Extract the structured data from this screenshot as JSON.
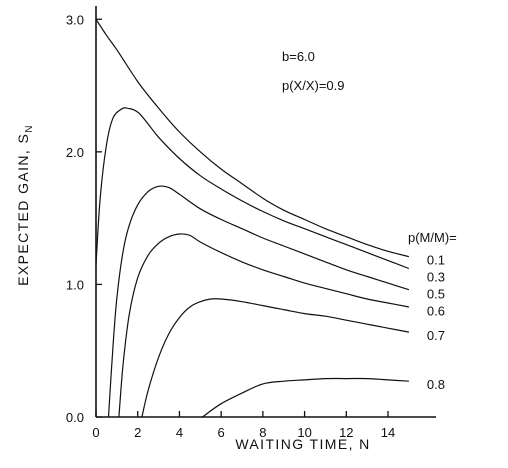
{
  "chart_data": {
    "type": "line",
    "xlabel": "WAITING TIME, N",
    "ylabel": "EXPECTED GAIN, S",
    "ylabel_subscript": "N",
    "xlim": [
      0,
      16.3
    ],
    "ylim": [
      0,
      3.1
    ],
    "x_ticks": [
      0,
      2,
      4,
      6,
      8,
      10,
      12,
      14
    ],
    "y_ticks": [
      0.0,
      1.0,
      2.0,
      3.0
    ],
    "x_tick_labels": [
      "0",
      "2",
      "4",
      "6",
      "8",
      "10",
      "12",
      "14"
    ],
    "y_tick_labels": [
      "0.0",
      "1.0",
      "2.0",
      "3.0"
    ],
    "grid": false,
    "annotations": [
      "b=6.0",
      "p(X/X)=0.9"
    ],
    "legend_title": "p(M/M)=",
    "series": [
      {
        "name": "0.1",
        "x": [
          0,
          0.5,
          1,
          2,
          3,
          4,
          5,
          6,
          7,
          8,
          9,
          10,
          11,
          12,
          13,
          14,
          15
        ],
        "values": [
          3.0,
          2.88,
          2.77,
          2.53,
          2.33,
          2.15,
          2.0,
          1.87,
          1.76,
          1.65,
          1.56,
          1.49,
          1.42,
          1.36,
          1.3,
          1.25,
          1.21
        ]
      },
      {
        "name": "0.3",
        "x": [
          0,
          0.2,
          0.5,
          0.8,
          1.2,
          1.5,
          2,
          2.5,
          3,
          4,
          5,
          6,
          7,
          8,
          9,
          10,
          11,
          12,
          13,
          14,
          15
        ],
        "values": [
          1.15,
          1.65,
          2.05,
          2.25,
          2.32,
          2.33,
          2.3,
          2.21,
          2.11,
          1.95,
          1.82,
          1.72,
          1.63,
          1.55,
          1.48,
          1.42,
          1.36,
          1.3,
          1.24,
          1.18,
          1.12
        ]
      },
      {
        "name": "0.5",
        "x": [
          0.6,
          0.8,
          1.0,
          1.3,
          1.6,
          2,
          2.5,
          3,
          3.5,
          4,
          5,
          6,
          7,
          8,
          9,
          10,
          11,
          12,
          13,
          14,
          15
        ],
        "values": [
          0.0,
          0.5,
          0.9,
          1.25,
          1.45,
          1.6,
          1.7,
          1.74,
          1.73,
          1.68,
          1.57,
          1.49,
          1.42,
          1.35,
          1.29,
          1.23,
          1.17,
          1.11,
          1.06,
          1.01,
          0.96
        ]
      },
      {
        "name": "0.6",
        "x": [
          1.1,
          1.3,
          1.6,
          2,
          2.5,
          3,
          3.5,
          4,
          4.5,
          5,
          6,
          7,
          8,
          9,
          10,
          11,
          12,
          13,
          14,
          15
        ],
        "values": [
          0.0,
          0.4,
          0.78,
          1.05,
          1.22,
          1.31,
          1.36,
          1.38,
          1.37,
          1.32,
          1.24,
          1.17,
          1.11,
          1.06,
          1.01,
          0.97,
          0.93,
          0.89,
          0.86,
          0.83
        ]
      },
      {
        "name": "0.7",
        "x": [
          2.2,
          2.5,
          3,
          3.5,
          4,
          4.5,
          5,
          5.5,
          6,
          7,
          8,
          9,
          10,
          11,
          12,
          13,
          14,
          15
        ],
        "values": [
          0.0,
          0.2,
          0.45,
          0.63,
          0.75,
          0.83,
          0.87,
          0.89,
          0.89,
          0.87,
          0.84,
          0.81,
          0.78,
          0.76,
          0.73,
          0.7,
          0.67,
          0.64
        ]
      },
      {
        "name": "0.8",
        "x": [
          5.1,
          6,
          7,
          8,
          9,
          10,
          11,
          12,
          13,
          14,
          15
        ],
        "values": [
          0.0,
          0.1,
          0.18,
          0.25,
          0.27,
          0.28,
          0.29,
          0.29,
          0.29,
          0.28,
          0.27
        ]
      }
    ]
  }
}
